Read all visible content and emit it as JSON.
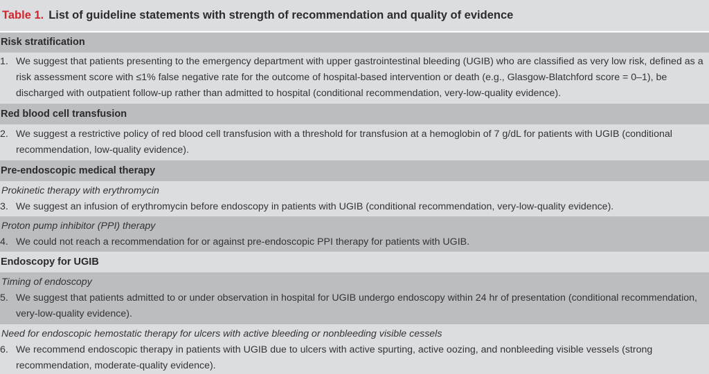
{
  "title": {
    "label": "Table 1.",
    "text": "List of guideline statements with strength of recommendation and quality of evidence"
  },
  "colors": {
    "label_red": "#d0262e",
    "dark_row": "#bcbdc0",
    "light_row": "#dcdde0"
  },
  "rows": [
    {
      "type": "head",
      "text": "Risk stratification"
    },
    {
      "type": "item",
      "num": "1.",
      "lines": [
        "We suggest that patients presenting to the emergency department with upper gastrointestinal bleeding (UGIB) who are classified as very low risk, defined as a",
        "risk assessment score with ≤1% false negative rate for the outcome of hospital-based intervention or death (e.g., Glasgow-Blatchford score = 0–1), be",
        "discharged with outpatient follow-up rather than admitted to hospital (conditional recommendation, very-low-quality evidence)."
      ]
    },
    {
      "type": "head",
      "text": "Red blood cell transfusion"
    },
    {
      "type": "item",
      "num": "2.",
      "lines": [
        "We suggest a restrictive policy of red blood cell transfusion with a threshold for transfusion at a hemoglobin of 7 g/dL for patients with UGIB (conditional",
        "recommendation, low-quality evidence)."
      ]
    },
    {
      "type": "head",
      "text": "Pre-endoscopic medical therapy"
    },
    {
      "type": "item",
      "sub": "Prokinetic therapy with erythromycin",
      "num": "3.",
      "lines": [
        "We suggest an infusion of erythromycin before endoscopy in patients with UGIB (conditional recommendation, very-low-quality evidence)."
      ]
    },
    {
      "type": "item",
      "sub": "Proton pump inhibitor (PPI) therapy",
      "num": "4.",
      "lines": [
        "We could not reach a recommendation for or against pre-endoscopic PPI therapy for patients with UGIB."
      ]
    },
    {
      "type": "head",
      "text": "Endoscopy for UGIB"
    },
    {
      "type": "item",
      "sub": "Timing of endoscopy",
      "num": "5.",
      "lines": [
        "We suggest that patients admitted to or under observation in hospital for UGIB undergo endoscopy within 24 hr of presentation (conditional recommendation,",
        "very-low-quality evidence)."
      ]
    },
    {
      "type": "item",
      "sub": "Need for endoscopic hemostatic therapy for ulcers with active bleeding or nonbleeding visible cessels",
      "num": "6.",
      "lines": [
        "We recommend endoscopic therapy in patients with UGIB due to ulcers with active spurting, active oozing, and nonbleeding visible vessels (strong",
        "recommendation, moderate-quality evidence)."
      ]
    }
  ]
}
